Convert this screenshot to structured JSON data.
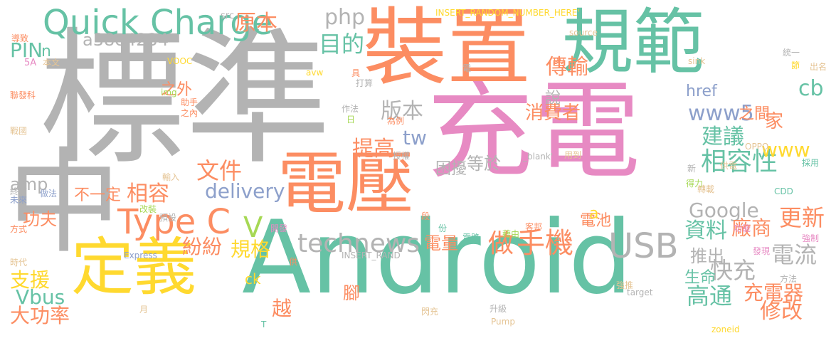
{
  "palette": {
    "gray": "#b3b3b3",
    "orange": "#fc8d62",
    "teal": "#66c2a5",
    "pink": "#e78ac3",
    "yellow": "#ffd92f",
    "blue": "#8da0cb",
    "green": "#a6d854",
    "tan": "#e5c494"
  },
  "words": [
    {
      "text": "標準"
    },
    {
      "text": "充電"
    },
    {
      "text": "Android"
    },
    {
      "text": "裝置"
    },
    {
      "text": "規範"
    },
    {
      "text": "電壓"
    },
    {
      "text": "定義"
    },
    {
      "text": "中"
    },
    {
      "text": "Quick Charge"
    },
    {
      "text": "Type C"
    },
    {
      "text": "USB"
    },
    {
      "text": "手機"
    },
    {
      "text": "technews"
    },
    {
      "text": "相容性"
    },
    {
      "text": "Google"
    },
    {
      "text": "delivery"
    },
    {
      "text": "文件"
    },
    {
      "text": "原本"
    },
    {
      "text": "php"
    },
    {
      "text": "a38e4234"
    },
    {
      "text": "目的"
    },
    {
      "text": "傳輸"
    },
    {
      "text": "版本"
    },
    {
      "text": "提高"
    },
    {
      "text": "tw"
    },
    {
      "text": "www5"
    },
    {
      "text": "消費者"
    },
    {
      "text": "cb"
    },
    {
      "text": "建議"
    },
    {
      "text": "www"
    },
    {
      "text": "相容"
    },
    {
      "text": "amp"
    },
    {
      "text": "PIN"
    },
    {
      "text": "快充"
    },
    {
      "text": "充電器"
    },
    {
      "text": "高通"
    },
    {
      "text": "電流"
    },
    {
      "text": "廠商"
    },
    {
      "text": "資料"
    },
    {
      "text": "更新"
    },
    {
      "text": "Vbus"
    },
    {
      "text": "大功率"
    },
    {
      "text": "支援"
    },
    {
      "text": "做"
    },
    {
      "text": "規格"
    },
    {
      "text": "電量"
    },
    {
      "text": "修改"
    },
    {
      "text": "推出"
    },
    {
      "text": "生命"
    },
    {
      "text": "電池"
    },
    {
      "text": "紛紛"
    },
    {
      "text": "困擾"
    },
    {
      "text": "等於"
    },
    {
      "text": "不一定"
    },
    {
      "text": "功夫"
    },
    {
      "text": "之外"
    },
    {
      "text": "之間"
    },
    {
      "text": "說"
    },
    {
      "text": "href"
    },
    {
      "text": "家"
    },
    {
      "text": "V"
    },
    {
      "text": "ck"
    },
    {
      "text": "越"
    },
    {
      "text": "腳"
    },
    {
      "text": "n"
    },
    {
      "text": "INSERT_RANDOM_NUMBER_HERE'"
    },
    {
      "text": "INSERT_RAND"
    },
    {
      "text": "src"
    },
    {
      "text": "source"
    },
    {
      "text": "導致"
    },
    {
      "text": "5A"
    },
    {
      "text": "本文"
    },
    {
      "text": "VOOC"
    },
    {
      "text": "img"
    },
    {
      "text": "聯發科"
    },
    {
      "text": "戰國"
    },
    {
      "text": "輸入"
    },
    {
      "text": "終結"
    },
    {
      "text": "未來"
    },
    {
      "text": "做法"
    },
    {
      "text": "改裝"
    },
    {
      "text": "方式"
    },
    {
      "text": "預設"
    },
    {
      "text": "開發"
    },
    {
      "text": "時代"
    },
    {
      "text": "Express"
    },
    {
      "text": "月"
    },
    {
      "text": "T"
    },
    {
      "text": "助手"
    },
    {
      "text": "之內"
    },
    {
      "text": "avw"
    },
    {
      "text": "具"
    },
    {
      "text": "打算"
    },
    {
      "text": "作法"
    },
    {
      "text": "日"
    },
    {
      "text": "為例"
    },
    {
      "text": "授權"
    },
    {
      "text": "段"
    },
    {
      "text": "份"
    },
    {
      "text": "閃充"
    },
    {
      "text": "供"
    },
    {
      "text": "升級"
    },
    {
      "text": "Pump"
    },
    {
      "text": "電路"
    },
    {
      "text": "藉由"
    },
    {
      "text": "客邦"
    },
    {
      "text": "a"
    },
    {
      "text": "用到"
    },
    {
      "text": "_blank'"
    },
    {
      "text": "9V"
    },
    {
      "text": "電"
    },
    {
      "text": "sink"
    },
    {
      "text": "統一"
    },
    {
      "text": "節"
    },
    {
      "text": "出名"
    },
    {
      "text": "供電"
    },
    {
      "text": "OPPO"
    },
    {
      "text": "新"
    },
    {
      "text": "得力"
    },
    {
      "text": "轉載"
    },
    {
      "text": "CDD"
    },
    {
      "text": "採用"
    },
    {
      "text": "功能"
    },
    {
      "text": "強制"
    },
    {
      "text": "發現"
    },
    {
      "text": "強推"
    },
    {
      "text": "方法"
    },
    {
      "text": "target"
    },
    {
      "text": "zoneid"
    }
  ]
}
